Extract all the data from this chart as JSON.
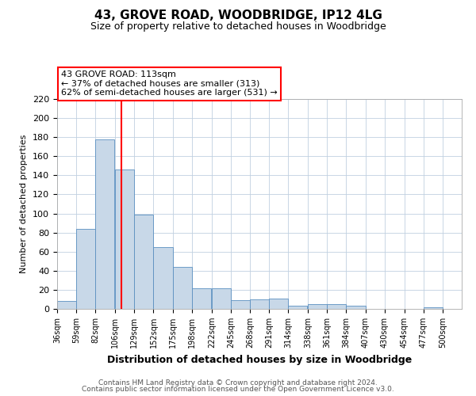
{
  "title1": "43, GROVE ROAD, WOODBRIDGE, IP12 4LG",
  "title2": "Size of property relative to detached houses in Woodbridge",
  "xlabel": "Distribution of detached houses by size in Woodbridge",
  "ylabel": "Number of detached properties",
  "footnote1": "Contains HM Land Registry data © Crown copyright and database right 2024.",
  "footnote2": "Contains public sector information licensed under the Open Government Licence v3.0.",
  "annotation_line1": "43 GROVE ROAD: 113sqm",
  "annotation_line2": "← 37% of detached houses are smaller (313)",
  "annotation_line3": "62% of semi-detached houses are larger (531) →",
  "bar_color": "#c8d8e8",
  "bar_edge_color": "#5a8fc0",
  "vline_x": 113,
  "vline_color": "red",
  "categories": [
    "36sqm",
    "59sqm",
    "82sqm",
    "106sqm",
    "129sqm",
    "152sqm",
    "175sqm",
    "198sqm",
    "222sqm",
    "245sqm",
    "268sqm",
    "291sqm",
    "314sqm",
    "338sqm",
    "361sqm",
    "384sqm",
    "407sqm",
    "430sqm",
    "454sqm",
    "477sqm",
    "500sqm"
  ],
  "bin_starts": [
    36,
    59,
    82,
    106,
    129,
    152,
    175,
    198,
    222,
    245,
    268,
    291,
    314,
    338,
    361,
    384,
    407,
    430,
    454,
    477,
    500
  ],
  "values": [
    8,
    84,
    178,
    146,
    99,
    65,
    44,
    22,
    22,
    9,
    10,
    11,
    3,
    5,
    5,
    3,
    0,
    0,
    0,
    2,
    0
  ],
  "ylim": [
    0,
    220
  ],
  "yticks": [
    0,
    20,
    40,
    60,
    80,
    100,
    120,
    140,
    160,
    180,
    200,
    220
  ],
  "background_color": "#ffffff",
  "grid_color": "#c0d0e0"
}
